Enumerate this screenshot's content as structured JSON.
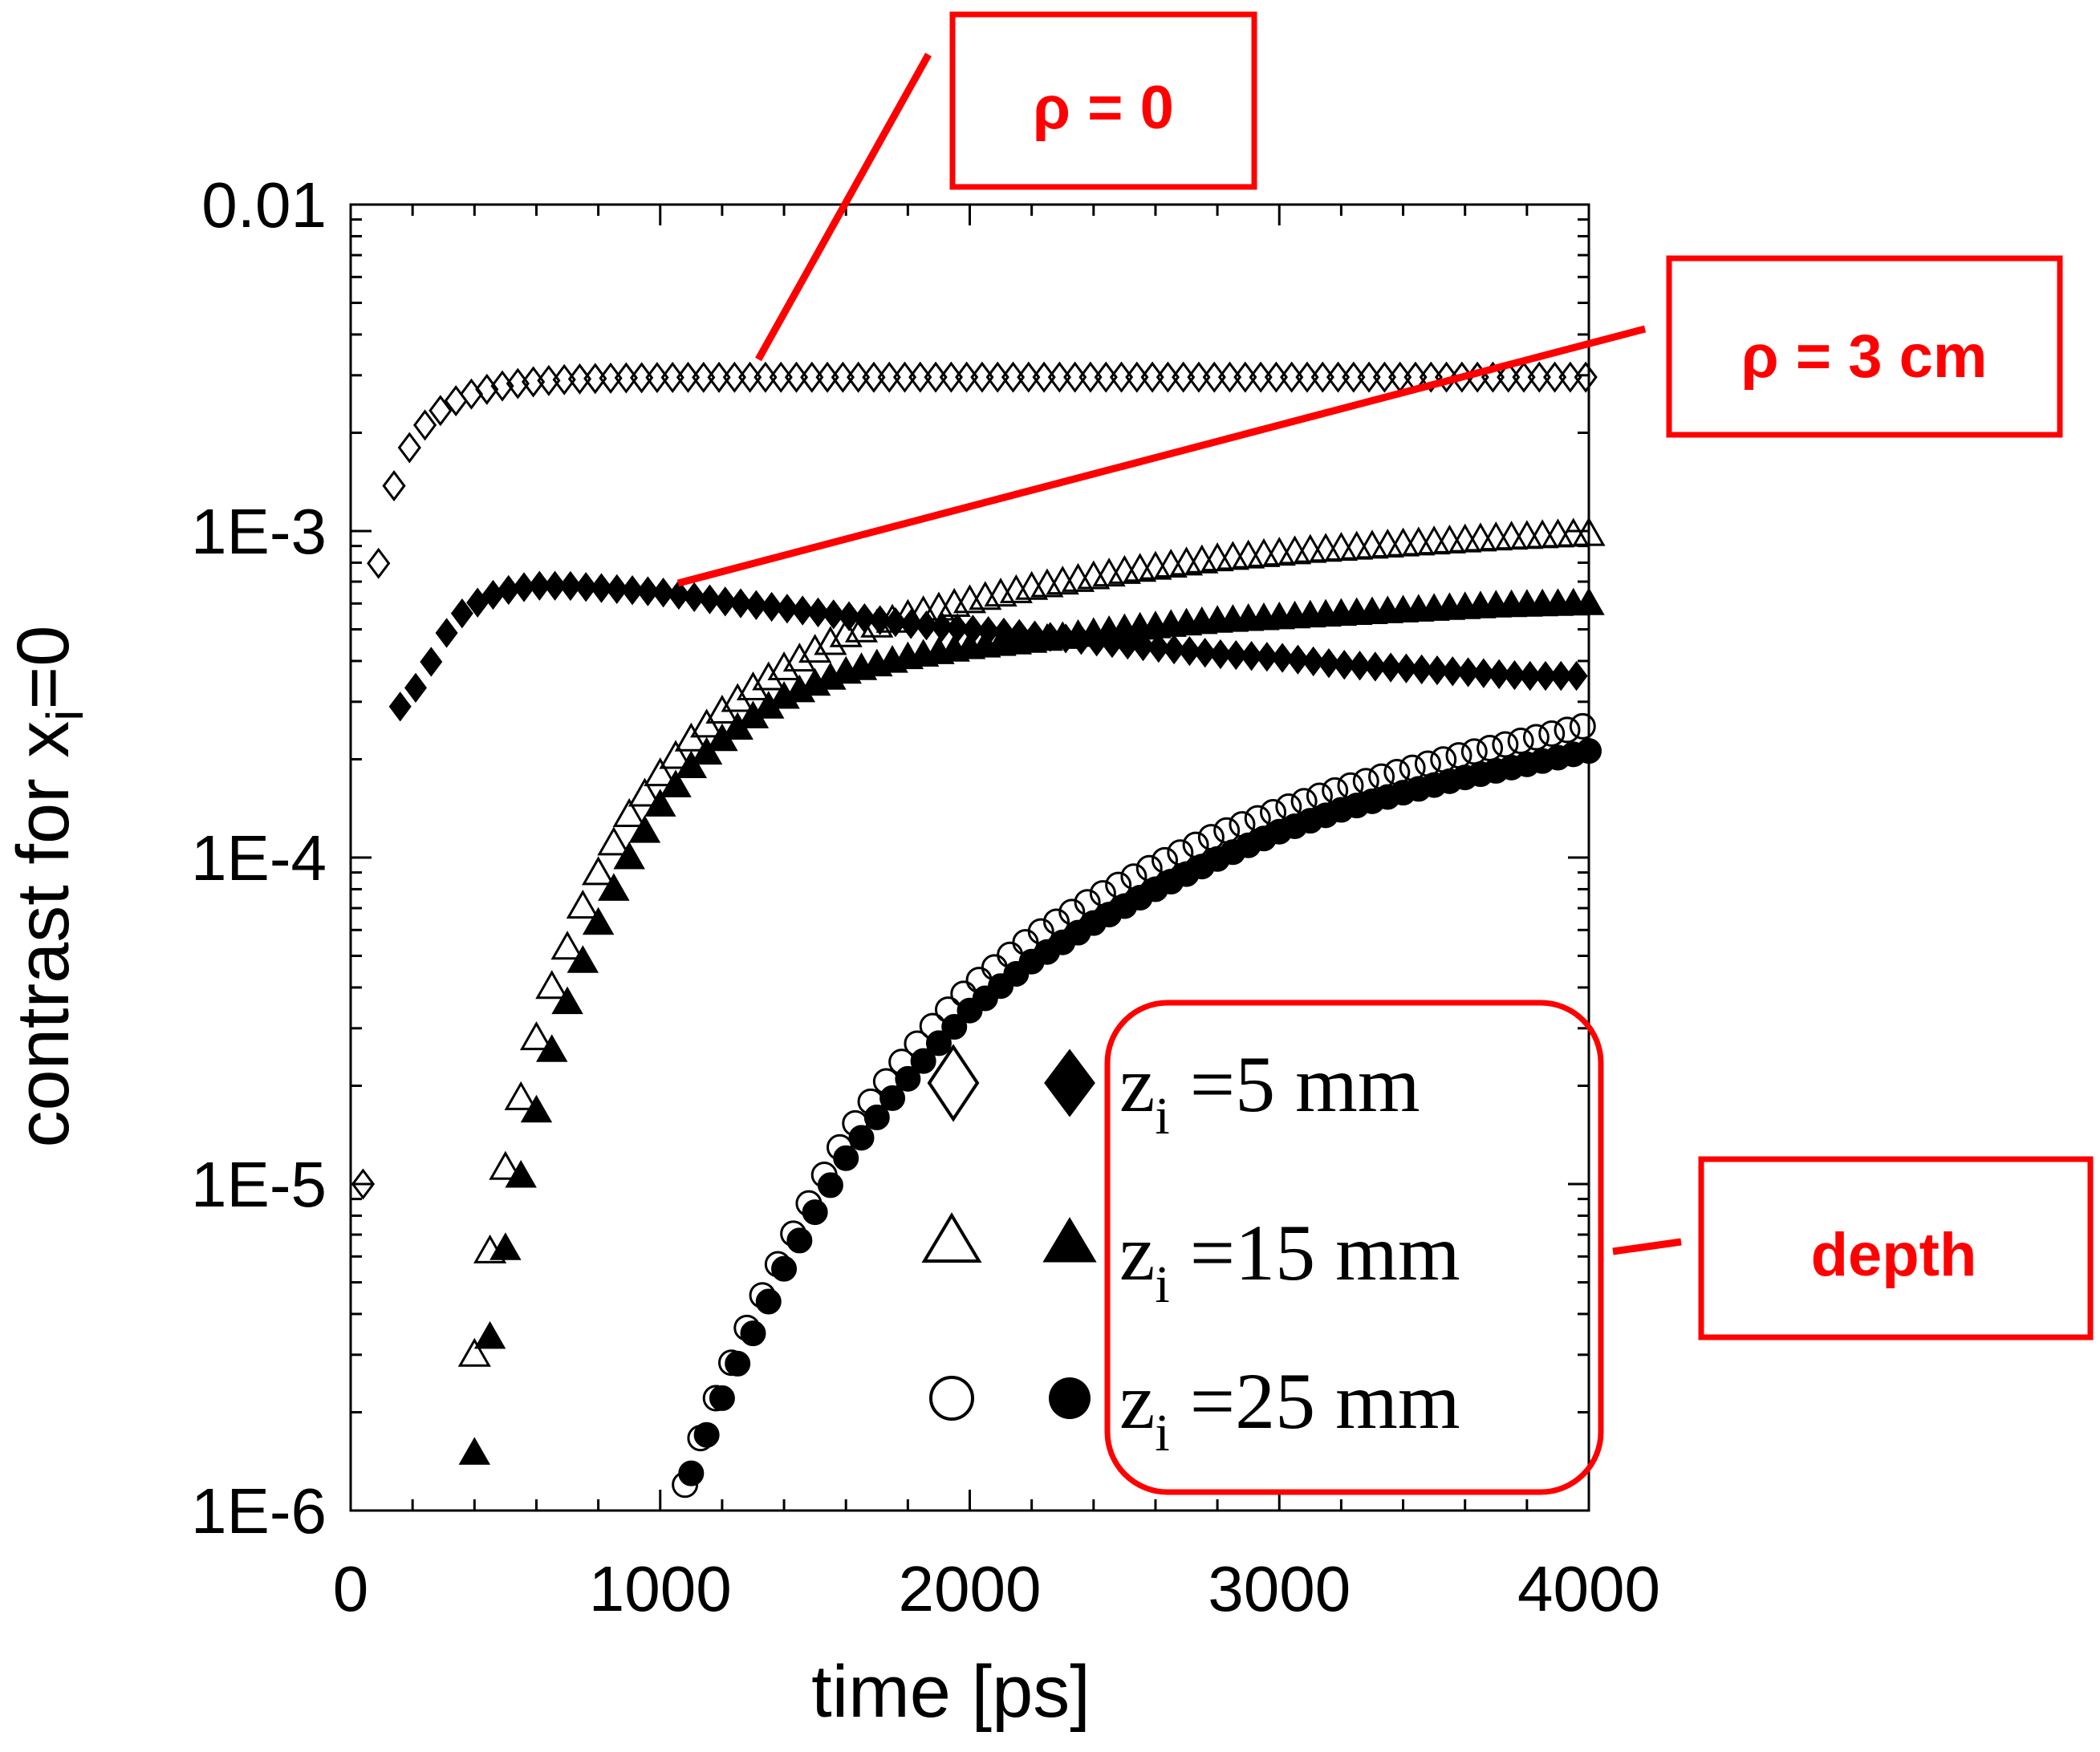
{
  "chart_data": {
    "type": "scatter",
    "title": "",
    "xlabel": "time  [ps]",
    "ylabel": "contrast for x",
    "ylabel_sub": "i",
    "ylabel_tail": "=0",
    "xlim": [
      0,
      4000
    ],
    "ylim": [
      1e-06,
      0.01
    ],
    "yscale": "log",
    "x_ticks": [
      0,
      1000,
      2000,
      3000,
      4000
    ],
    "x_tick_labels": [
      "0",
      "1000",
      "2000",
      "3000",
      "4000"
    ],
    "y_ticks": [
      1e-06,
      1e-05,
      0.0001,
      0.001,
      0.01
    ],
    "y_tick_labels": [
      "1E-6",
      "1E-5",
      "1E-4",
      "1E-3",
      "0.01"
    ],
    "grid": false,
    "legend": {
      "placement": "bottom-right",
      "entries": [
        {
          "prefix": "z",
          "sub": "i",
          "text": " =5 mm",
          "open_marker": "diamond",
          "filled_marker": "diamond"
        },
        {
          "prefix": "z",
          "sub": "i",
          "text": " =15 mm",
          "open_marker": "triangle",
          "filled_marker": "triangle"
        },
        {
          "prefix": "z",
          "sub": "i",
          "text": " =25 mm",
          "open_marker": "circle",
          "filled_marker": "circle"
        }
      ]
    },
    "annotations": [
      {
        "id": "rho0",
        "text": "ρ = 0",
        "target": "open markers (ρ = 0)"
      },
      {
        "id": "rho3",
        "text": "ρ = 3 cm",
        "target": "filled markers (ρ = 3 cm)"
      },
      {
        "id": "depth",
        "text": "depth",
        "target": "legend"
      }
    ],
    "series": [
      {
        "name": "z_i =5 mm, ρ = 0",
        "marker": "diamond",
        "filled": false,
        "model": {
          "kind": "sat",
          "A": 0.00296,
          "tau": 160,
          "t0": 40,
          "decay": 1e-05
        },
        "x_start": 40,
        "x_end": 4000,
        "x_step": 50
      },
      {
        "name": "z_i =5 mm, ρ = 3 cm",
        "marker": "diamond",
        "filled": true,
        "points": [
          [
            160,
            0.00029
          ],
          [
            220,
            0.00034
          ],
          [
            280,
            0.00043
          ],
          [
            330,
            0.00053
          ],
          [
            380,
            0.00058
          ],
          [
            430,
            0.00062
          ],
          [
            480,
            0.00065
          ],
          [
            540,
            0.00067
          ],
          [
            600,
            0.00068
          ],
          [
            700,
            0.00068
          ],
          [
            800,
            0.00067
          ],
          [
            900,
            0.00066
          ],
          [
            1000,
            0.00065
          ],
          [
            1200,
            0.00061
          ],
          [
            1400,
            0.00058
          ],
          [
            1600,
            0.00055
          ],
          [
            1800,
            0.00052
          ],
          [
            2000,
            0.0005
          ],
          [
            2200,
            0.00048
          ],
          [
            2400,
            0.00046
          ],
          [
            2600,
            0.00044
          ],
          [
            2800,
            0.00042
          ],
          [
            3000,
            0.00041
          ],
          [
            3200,
            0.00039
          ],
          [
            3400,
            0.00038
          ],
          [
            3600,
            0.00037
          ],
          [
            3800,
            0.00036
          ],
          [
            4000,
            0.00036
          ]
        ],
        "x_step": 50
      },
      {
        "name": "z_i =15 mm, ρ = 0",
        "marker": "triangle",
        "filled": false,
        "points": [
          [
            400,
            3e-06
          ],
          [
            460,
            7.2e-06
          ],
          [
            520,
            1.4e-05
          ],
          [
            580,
            2.4e-05
          ],
          [
            640,
            3.8e-05
          ],
          [
            700,
            5.3e-05
          ],
          [
            760,
            7.5e-05
          ],
          [
            820,
            9.8e-05
          ],
          [
            900,
            0.000135
          ],
          [
            1000,
            0.00018
          ],
          [
            1100,
            0.00023
          ],
          [
            1200,
            0.00028
          ],
          [
            1300,
            0.00033
          ],
          [
            1400,
            0.00038
          ],
          [
            1500,
            0.00043
          ],
          [
            1600,
            0.00048
          ],
          [
            1800,
            0.00055
          ],
          [
            2000,
            0.00061
          ],
          [
            2200,
            0.00067
          ],
          [
            2500,
            0.00075
          ],
          [
            2800,
            0.00082
          ],
          [
            3100,
            0.00087
          ],
          [
            3400,
            0.00091
          ],
          [
            3700,
            0.00095
          ],
          [
            4000,
            0.00098
          ]
        ],
        "x_step": 50,
        "x_start": 400
      },
      {
        "name": "z_i =15 mm, ρ = 3 cm",
        "marker": "triangle",
        "filled": true,
        "points": [
          [
            400,
            1.5e-06
          ],
          [
            460,
            4e-06
          ],
          [
            520,
            8e-06
          ],
          [
            580,
            1.4e-05
          ],
          [
            640,
            2.4e-05
          ],
          [
            700,
            3.6e-05
          ],
          [
            760,
            5.1e-05
          ],
          [
            820,
            7e-05
          ],
          [
            900,
            0.0001
          ],
          [
            1000,
            0.000145
          ],
          [
            1100,
            0.00019
          ],
          [
            1200,
            0.00023
          ],
          [
            1300,
            0.00027
          ],
          [
            1400,
            0.00031
          ],
          [
            1500,
            0.00034
          ],
          [
            1600,
            0.00037
          ],
          [
            1800,
            0.00041
          ],
          [
            2000,
            0.00044
          ],
          [
            2200,
            0.00046
          ],
          [
            2500,
            0.0005
          ],
          [
            2800,
            0.00053
          ],
          [
            3100,
            0.00055
          ],
          [
            3400,
            0.00057
          ],
          [
            3700,
            0.00059
          ],
          [
            4000,
            0.0006
          ]
        ],
        "x_step": 50,
        "x_start": 400
      },
      {
        "name": "z_i =25 mm, ρ = 0",
        "marker": "circle",
        "filled": false,
        "points": [
          [
            1080,
            1.2e-06
          ],
          [
            1150,
            1.9e-06
          ],
          [
            1220,
            2.7e-06
          ],
          [
            1300,
            4e-06
          ],
          [
            1400,
            6.2e-06
          ],
          [
            1500,
            9.5e-06
          ],
          [
            1600,
            1.4e-05
          ],
          [
            1700,
            1.9e-05
          ],
          [
            1800,
            2.5e-05
          ],
          [
            1900,
            3.2e-05
          ],
          [
            2000,
            4e-05
          ],
          [
            2200,
            5.7e-05
          ],
          [
            2400,
            7.5e-05
          ],
          [
            2600,
            9.5e-05
          ],
          [
            2800,
            0.000118
          ],
          [
            3000,
            0.00014
          ],
          [
            3200,
            0.000163
          ],
          [
            3400,
            0.000185
          ],
          [
            3600,
            0.000208
          ],
          [
            3800,
            0.00023
          ],
          [
            4000,
            0.000255
          ]
        ],
        "x_step": 50,
        "x_start": 1080
      },
      {
        "name": "z_i =25 mm, ρ = 3 cm",
        "marker": "circle",
        "filled": true,
        "points": [
          [
            1100,
            1.3e-06
          ],
          [
            1170,
            1.9e-06
          ],
          [
            1240,
            2.7e-06
          ],
          [
            1320,
            3.8e-06
          ],
          [
            1400,
            5.5e-06
          ],
          [
            1500,
            8.2e-06
          ],
          [
            1600,
            1.2e-05
          ],
          [
            1700,
            1.6e-05
          ],
          [
            1800,
            2.1e-05
          ],
          [
            1900,
            2.7e-05
          ],
          [
            2000,
            3.4e-05
          ],
          [
            2200,
            4.8e-05
          ],
          [
            2400,
            6.3e-05
          ],
          [
            2600,
            8e-05
          ],
          [
            2800,
            9.9e-05
          ],
          [
            3000,
            0.00012
          ],
          [
            3200,
            0.00014
          ],
          [
            3400,
            0.000158
          ],
          [
            3600,
            0.000176
          ],
          [
            3800,
            0.000193
          ],
          [
            4000,
            0.000212
          ]
        ],
        "x_step": 50,
        "x_start": 1100
      }
    ]
  }
}
